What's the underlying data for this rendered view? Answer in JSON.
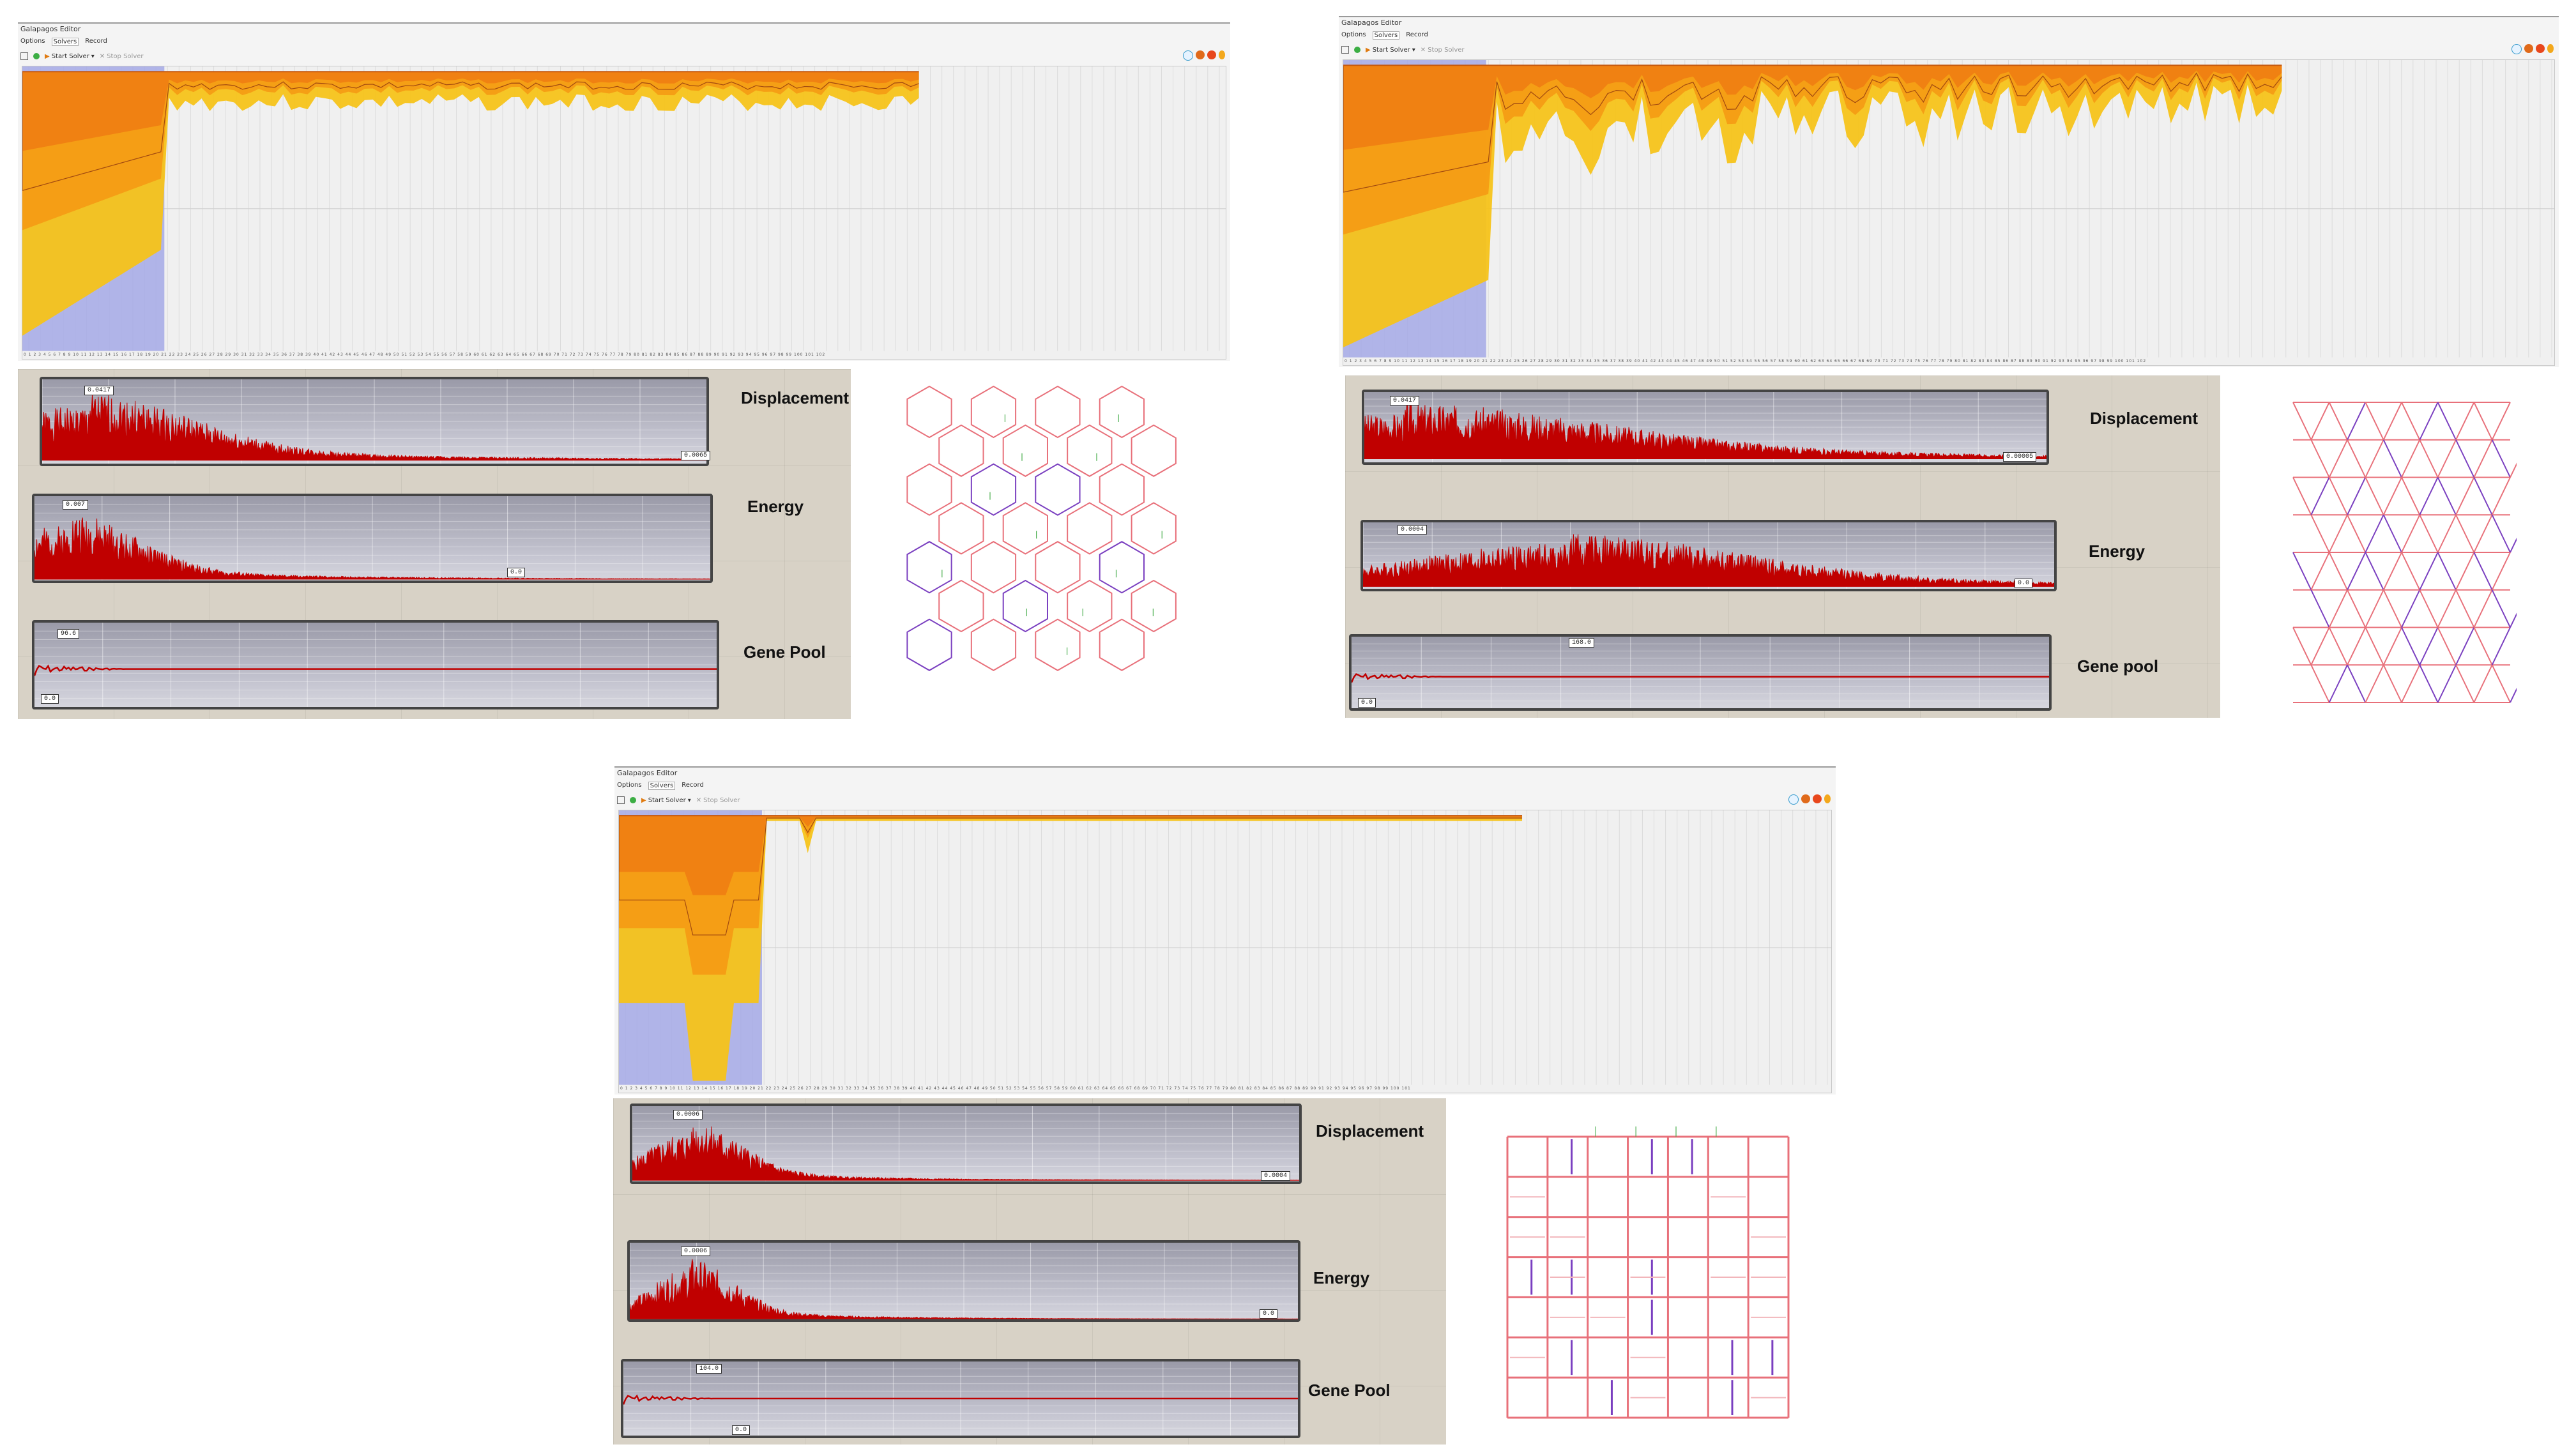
{
  "panels": [
    {
      "id": "hexagonal",
      "editor": {
        "title": "Galapagos Editor",
        "menu": [
          "Options",
          "Solvers",
          "Record"
        ],
        "start_label": "Start Solver",
        "stop_label": "Stop Solver",
        "axis_ticks": "0 1 2 3 4 5 6 7 8 9 10 11 12 13 14 15 16 17 18 19 20 21 22 23 24 25 26 27 28 29 30 31 32 33 34 35 36 37 38 39 40 41 42 43 44 45 46 47 48 49 50 51 52 53 54 55 56 57 58 59 60 61 62 63 64 65 66 67 68 69 70 71 72 73 74 75 76 77 78 79 80 81 82 83 84 85 86 87 88 89 90 91 92 93 94 95 96 97 98 99 100 101 102"
      },
      "graphs": [
        {
          "label": "Displacement",
          "max_tag": "0.0417",
          "min_tag": "0.0065"
        },
        {
          "label": "Energy",
          "max_tag": "0.007",
          "min_tag": "0.0"
        },
        {
          "label": "Gene Pool",
          "max_tag": "96.6",
          "min_tag": "0.0"
        }
      ]
    },
    {
      "id": "triangular",
      "editor": {
        "title": "Galapagos Editor",
        "menu": [
          "Options",
          "Solvers",
          "Record"
        ],
        "start_label": "Start Solver",
        "stop_label": "Stop Solver",
        "axis_ticks": "0 1 2 3 4 5 6 7 8 9 10 11 12 13 14 15 16 17 18 19 20 21 22 23 24 25 26 27 28 29 30 31 32 33 34 35 36 37 38 39 40 41 42 43 44 45 46 47 48 49 50 51 52 53 54 55 56 57 58 59 60 61 62 63 64 65 66 67 68 69 70 71 72 73 74 75 76 77 78 79 80 81 82 83 84 85 86 87 88 89 90 91 92 93 94 95 96 97 98 99 100 101 102"
      },
      "graphs": [
        {
          "label": "Displacement",
          "max_tag": "0.0417",
          "min_tag": "0.00005"
        },
        {
          "label": "Energy",
          "max_tag": "0.0004",
          "min_tag": "0.0"
        },
        {
          "label": "Gene pool",
          "max_tag": "168.0",
          "min_tag": "0.0"
        }
      ]
    },
    {
      "id": "square",
      "editor": {
        "title": "Galapagos Editor",
        "menu": [
          "Options",
          "Solvers",
          "Record"
        ],
        "start_label": "Start Solver",
        "stop_label": "Stop Solver",
        "axis_ticks": "0 1 2 3 4 5 6 7 8 9 10 11 12 13 14 15 16 17 18 19 20 21 22 23 24 25 26 27 28 29 30 31 32 33 34 35 36 37 38 39 40 41 42 43 44 45 46 47 48 49 50 51 52 53 54 55 56 57 58 59 60 61 62 63 64 65 66 67 68 69 70 71 72 73 74 75 76 77 78 79 80 81 82 83 84 85 86 87 88 89 90 91 92 93 94 95 96 97 98 99 100 101"
      },
      "graphs": [
        {
          "label": "Displacement",
          "max_tag": "0.0006",
          "min_tag": "0.0004"
        },
        {
          "label": "Energy",
          "max_tag": "0.0006",
          "min_tag": "0.0"
        },
        {
          "label": "Gene Pool",
          "max_tag": "104.0",
          "min_tag": "0.0"
        }
      ]
    }
  ],
  "colors": {
    "fill_yellow": "#f5c31a",
    "fill_orange": "#f59a14",
    "fill_deep": "#f07d12",
    "fill_tan": "#d9b26a",
    "selection": "#a4a9e6",
    "graph_line": "#c00000",
    "lattice_line": "#e8707a",
    "lattice_accent": "#7a3fc0",
    "load_arrow": "#4caf50"
  }
}
